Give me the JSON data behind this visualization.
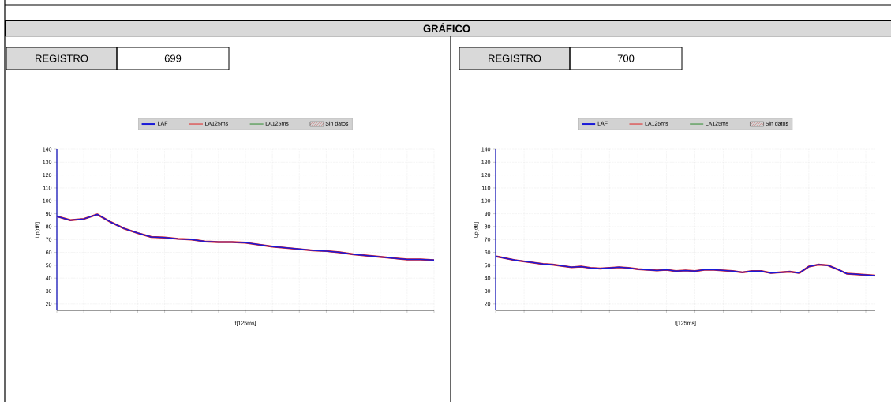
{
  "chart_data": [
    {
      "type": "line",
      "title": "REGISTRO",
      "subtitle": "699",
      "annotations": [
        "GRÁFICO"
      ],
      "xlabel": "t[125ms]",
      "ylabel": "Lp[dB]",
      "categories": [
        null,
        null,
        null,
        null,
        null,
        null,
        null,
        null,
        null,
        null,
        null,
        null,
        null,
        null,
        null,
        null,
        null,
        null,
        null,
        null,
        null,
        null,
        null,
        null,
        null,
        null,
        null,
        null,
        null
      ],
      "ylim": [
        15,
        140
      ],
      "yticks": [
        20,
        30,
        40,
        50,
        60,
        70,
        80,
        90,
        100,
        110,
        120,
        130,
        140
      ],
      "grid": true,
      "legend": "top",
      "series": [
        {
          "name": "LAF",
          "color": "#1a1ad8",
          "values": [
            88,
            85,
            86,
            89.5,
            83.5,
            78.5,
            75,
            72,
            71.5,
            70.5,
            70,
            68.5,
            68,
            68,
            67.5,
            66,
            64.5,
            63.5,
            62.5,
            61.5,
            61,
            60,
            58.5,
            57.5,
            56.5,
            55.5,
            54.5,
            54.5,
            54
          ]
        },
        {
          "name": "LA125ms",
          "color": "#e02020",
          "values": [
            88,
            85,
            86,
            89.5,
            83.5,
            78.5,
            75,
            72,
            71.5,
            70.5,
            70,
            68.5,
            68,
            68,
            67.5,
            66,
            64.5,
            63.5,
            62.5,
            61.5,
            61,
            60,
            58.5,
            57.5,
            56.5,
            55.5,
            54.5,
            54.5,
            54
          ]
        },
        {
          "name": "LA125ms",
          "color": "#2e8b2e",
          "values": [
            null,
            null,
            null,
            null,
            null,
            null,
            null,
            null,
            null,
            null,
            null,
            null,
            null,
            null,
            null,
            null,
            null,
            null,
            null,
            null,
            null,
            null,
            null,
            null,
            null,
            null,
            null,
            null,
            null
          ]
        },
        {
          "name": "Sin datos",
          "type": "area",
          "color": "#d05050",
          "values": [
            null,
            null,
            null,
            null,
            null,
            null,
            null,
            null,
            null,
            null,
            null,
            null,
            null,
            null,
            null,
            null,
            null,
            null,
            null,
            null,
            null,
            null,
            null,
            null,
            null,
            null,
            null,
            null,
            null
          ]
        }
      ]
    },
    {
      "type": "line",
      "title": "REGISTRO",
      "subtitle": "700",
      "xlabel": "t[125ms]",
      "ylabel": "Lp[dB]",
      "categories": [
        null,
        null,
        null,
        null,
        null,
        null,
        null,
        null,
        null,
        null,
        null,
        null,
        null,
        null,
        null,
        null,
        null,
        null,
        null,
        null,
        null,
        null,
        null,
        null,
        null,
        null,
        null,
        null,
        null,
        null,
        null,
        null,
        null,
        null,
        null,
        null,
        null,
        null,
        null,
        null,
        null
      ],
      "ylim": [
        15,
        140
      ],
      "yticks": [
        20,
        30,
        40,
        50,
        60,
        70,
        80,
        90,
        100,
        110,
        120,
        130,
        140
      ],
      "grid": true,
      "legend": "top",
      "series": [
        {
          "name": "LAF",
          "color": "#1a1ad8",
          "values": [
            57,
            55.5,
            54,
            53,
            52,
            51,
            50.5,
            49.5,
            48.5,
            49,
            48,
            47.5,
            48,
            48.5,
            48,
            47,
            46.5,
            46,
            46.5,
            45.5,
            46,
            45.5,
            46.5,
            46.5,
            46,
            45.5,
            44.5,
            45.5,
            45.5,
            44,
            44.5,
            45,
            44,
            49,
            50.5,
            50,
            47,
            43.5,
            43,
            42.5,
            42
          ]
        },
        {
          "name": "LA125ms",
          "color": "#e02020",
          "values": [
            57,
            55.5,
            54,
            53,
            52,
            51,
            50.5,
            49.5,
            48.5,
            49,
            48,
            47.5,
            48,
            48.5,
            48,
            47,
            46.5,
            46,
            46.5,
            45.5,
            46,
            45.5,
            46.5,
            46.5,
            46,
            45.5,
            44.5,
            45.5,
            45.5,
            44,
            44.5,
            45,
            44,
            49,
            50.5,
            50,
            47,
            43.5,
            43,
            42.5,
            42
          ]
        },
        {
          "name": "LA125ms",
          "color": "#2e8b2e",
          "values": [
            null,
            null,
            null,
            null,
            null,
            null,
            null,
            null,
            null,
            null,
            null,
            null,
            null,
            null,
            null,
            null,
            null,
            null,
            null,
            null,
            null,
            null,
            null,
            null,
            null,
            null,
            null,
            null,
            null,
            null,
            null,
            null,
            null,
            null,
            null,
            null,
            null,
            null,
            null,
            null,
            null
          ]
        },
        {
          "name": "Sin datos",
          "type": "area",
          "color": "#d05050",
          "values": [
            null,
            null,
            null,
            null,
            null,
            null,
            null,
            null,
            null,
            null,
            null,
            null,
            null,
            null,
            null,
            null,
            null,
            null,
            null,
            null,
            null,
            null,
            null,
            null,
            null,
            null,
            null,
            null,
            null,
            null,
            null,
            null,
            null,
            null,
            null,
            null,
            null,
            null,
            null,
            null,
            null
          ]
        }
      ]
    }
  ]
}
